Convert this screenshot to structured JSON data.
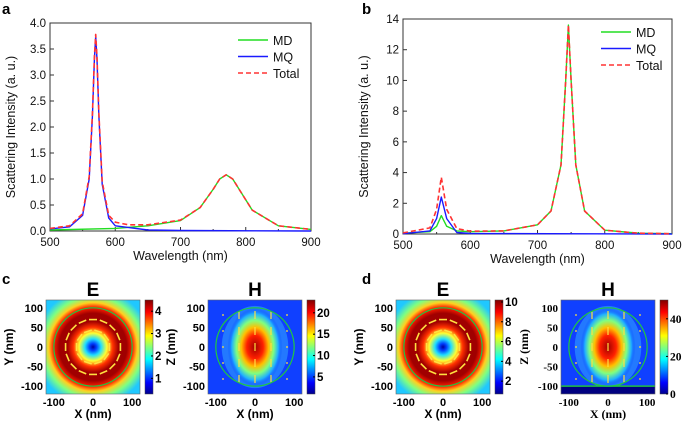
{
  "chart_data": [
    {
      "panel": "a",
      "type": "line",
      "xlabel": "Wavelength (nm)",
      "ylabel": "Scattering Intensity (a. u.)",
      "xlim": [
        500,
        900
      ],
      "ylim": [
        0,
        4.0
      ],
      "xticks": [
        "500",
        "600",
        "700",
        "800",
        "900"
      ],
      "yticks": [
        "0.0",
        "0.5",
        "1.0",
        "1.5",
        "2.0",
        "2.5",
        "3.0",
        "3.5",
        "4.0"
      ],
      "legend": "top-right",
      "series": [
        {
          "name": "MD",
          "color": "#22dd22",
          "style": "solid",
          "x": [
            500,
            600,
            650,
            700,
            730,
            750,
            760,
            770,
            780,
            790,
            810,
            850,
            900
          ],
          "y": [
            0.02,
            0.05,
            0.1,
            0.2,
            0.45,
            0.8,
            1.0,
            1.08,
            1.0,
            0.8,
            0.4,
            0.1,
            0.03
          ]
        },
        {
          "name": "MQ",
          "color": "#1a1aff",
          "style": "solid",
          "x": [
            500,
            530,
            550,
            560,
            565,
            568,
            570,
            572,
            575,
            580,
            590,
            600,
            650,
            700,
            900
          ],
          "y": [
            0.04,
            0.08,
            0.3,
            1.0,
            2.2,
            3.3,
            3.75,
            3.3,
            2.2,
            0.9,
            0.25,
            0.1,
            0.02,
            0.01,
            0
          ]
        },
        {
          "name": "Total",
          "color": "#ff3333",
          "style": "dashed",
          "x": [
            500,
            530,
            550,
            560,
            565,
            568,
            570,
            572,
            575,
            580,
            590,
            600,
            620,
            650,
            700,
            730,
            750,
            760,
            770,
            780,
            790,
            810,
            850,
            900
          ],
          "y": [
            0.05,
            0.1,
            0.33,
            1.05,
            2.25,
            3.35,
            3.78,
            3.35,
            2.25,
            0.95,
            0.3,
            0.17,
            0.12,
            0.12,
            0.21,
            0.45,
            0.8,
            1.0,
            1.08,
            1.0,
            0.8,
            0.4,
            0.1,
            0.03
          ]
        }
      ]
    },
    {
      "panel": "b",
      "type": "line",
      "xlabel": "Wavelength (nm)",
      "ylabel": "Scattering Intensity (a. u.)",
      "xlim": [
        500,
        900
      ],
      "ylim": [
        0,
        14
      ],
      "xticks": [
        "500",
        "600",
        "700",
        "800",
        "900"
      ],
      "yticks": [
        "0",
        "2",
        "4",
        "6",
        "8",
        "10",
        "12",
        "14"
      ],
      "legend": "top-right",
      "series": [
        {
          "name": "MD",
          "color": "#22dd22",
          "style": "solid",
          "x": [
            500,
            540,
            550,
            557,
            565,
            580,
            600,
            650,
            700,
            720,
            735,
            742,
            746,
            750,
            757,
            770,
            800,
            850,
            900
          ],
          "y": [
            0.05,
            0.15,
            0.5,
            1.2,
            0.5,
            0.2,
            0.15,
            0.2,
            0.6,
            1.5,
            4.5,
            10,
            13.6,
            10,
            4.5,
            1.5,
            0.25,
            0.05,
            0.02
          ]
        },
        {
          "name": "MQ",
          "color": "#1a1aff",
          "style": "solid",
          "x": [
            500,
            540,
            550,
            557,
            565,
            580,
            600,
            900
          ],
          "y": [
            0.02,
            0.2,
            1.0,
            2.4,
            1.0,
            0.1,
            0.03,
            0
          ]
        },
        {
          "name": "Total",
          "color": "#ff3333",
          "style": "dashed",
          "x": [
            500,
            540,
            550,
            557,
            565,
            580,
            600,
            650,
            700,
            720,
            735,
            742,
            746,
            750,
            757,
            770,
            800,
            850,
            900
          ],
          "y": [
            0.07,
            0.4,
            1.6,
            3.7,
            1.6,
            0.35,
            0.18,
            0.2,
            0.6,
            1.5,
            4.5,
            10,
            13.6,
            10,
            4.5,
            1.5,
            0.25,
            0.05,
            0.02
          ]
        }
      ]
    },
    {
      "panel": "c",
      "type": "heatmap",
      "title": "E",
      "xlabel": "X (nm)",
      "ylabel": "Y (nm)",
      "xlim": [
        -120,
        120
      ],
      "ylim": [
        -120,
        120
      ],
      "xticks": [
        "-100",
        "0",
        "100"
      ],
      "yticks": [
        "100",
        "50",
        "0",
        "-50",
        "-100"
      ],
      "colorbar": {
        "range": [
          0.3,
          4.5
        ],
        "ticks": [
          1,
          2,
          3,
          4
        ]
      },
      "pattern": "ring"
    },
    {
      "panel": "c",
      "type": "heatmap",
      "title": "H",
      "xlabel": "X (nm)",
      "ylabel": "Z (nm)",
      "xlim": [
        -120,
        120
      ],
      "ylim": [
        -120,
        120
      ],
      "xticks": [
        "-100",
        "0",
        "100"
      ],
      "yticks": [
        "100",
        "50",
        "0",
        "-50",
        "-100"
      ],
      "colorbar": {
        "range": [
          1,
          23
        ],
        "ticks": [
          5,
          10,
          15,
          20
        ]
      },
      "pattern": "lobe"
    },
    {
      "panel": "d",
      "type": "heatmap",
      "title": "E",
      "xlabel": "X (nm)",
      "ylabel": "Y (nm)",
      "xlim": [
        -120,
        120
      ],
      "ylim": [
        -120,
        120
      ],
      "xticks": [
        "-100",
        "0",
        "100"
      ],
      "yticks": [
        "100",
        "50",
        "0",
        "-50",
        "-100"
      ],
      "colorbar": {
        "range": [
          0.7,
          10.2
        ],
        "ticks": [
          2,
          4,
          6,
          8,
          10
        ]
      },
      "pattern": "ring"
    },
    {
      "panel": "d",
      "type": "heatmap",
      "title": "H",
      "xlabel": "X (nm)",
      "ylabel": "Z (nm)",
      "xlim": [
        -120,
        120
      ],
      "ylim": [
        -120,
        120
      ],
      "xticks": [
        "-100",
        "0",
        "100"
      ],
      "yticks": [
        "100",
        "50",
        "0",
        "-50",
        "-100"
      ],
      "colorbar": {
        "range": [
          0,
          50
        ],
        "ticks": [
          0,
          20,
          40
        ]
      },
      "pattern": "lobe-substrate"
    }
  ]
}
